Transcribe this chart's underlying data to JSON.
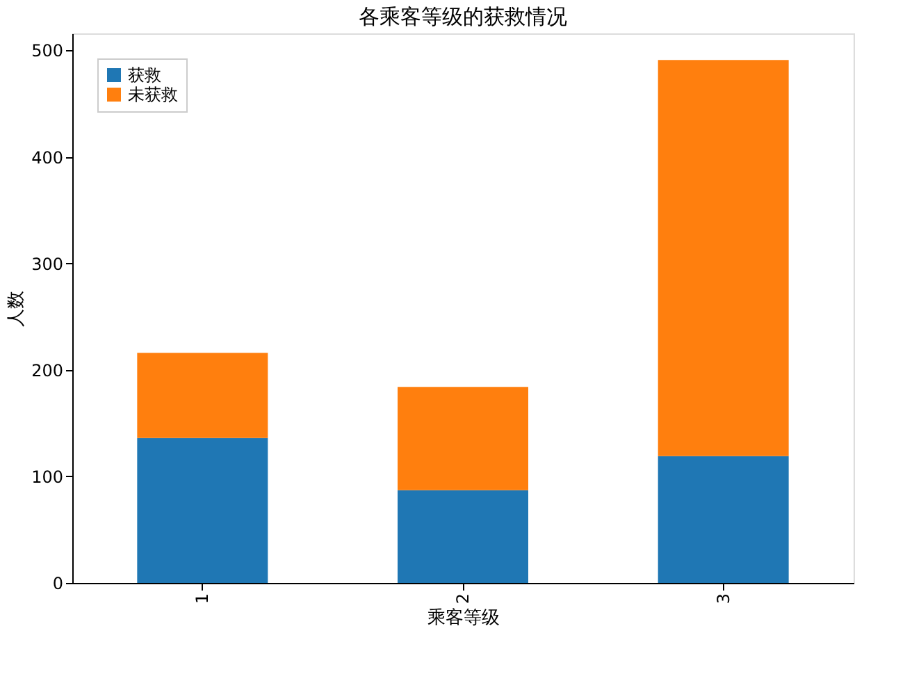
{
  "chart_data": {
    "type": "bar",
    "title": "各乘客等级的获救情况",
    "xlabel": "乘客等级",
    "ylabel": "人数",
    "categories": [
      "1",
      "2",
      "3"
    ],
    "series": [
      {
        "name": "获救",
        "color": "#1f77b4",
        "values": [
          136,
          87,
          119
        ]
      },
      {
        "name": "未获救",
        "color": "#ff7f0e",
        "values": [
          80,
          97,
          372
        ]
      }
    ],
    "stacked": true,
    "ylim": [
      0,
      516
    ],
    "yticks": [
      0,
      100,
      200,
      300,
      400,
      500
    ],
    "grid": false,
    "legend": "top left"
  }
}
